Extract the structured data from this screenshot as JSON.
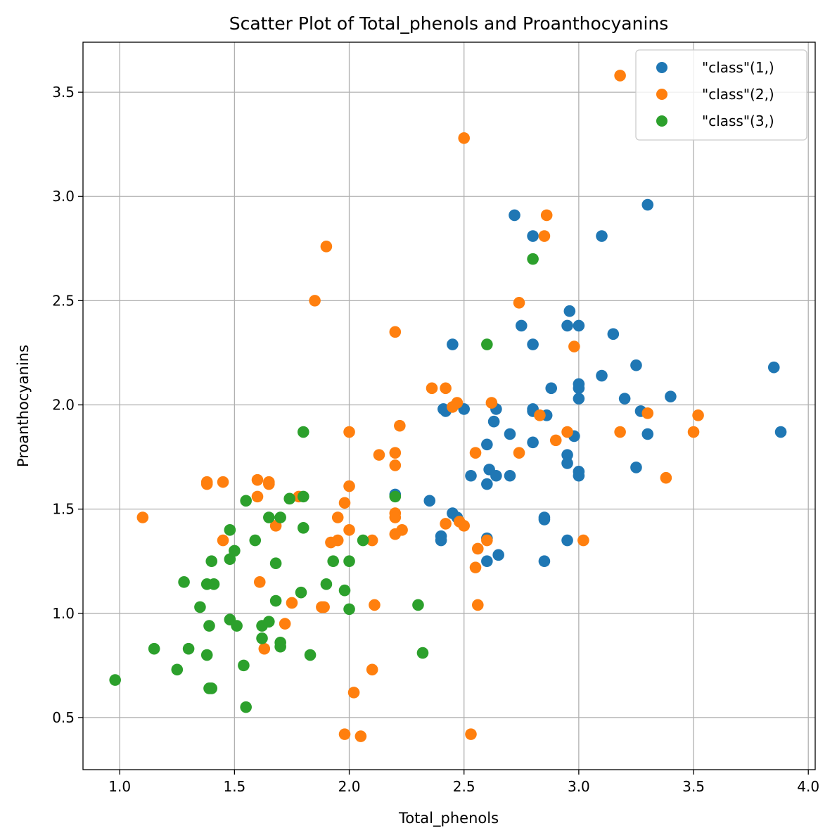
{
  "chart_data": {
    "type": "scatter",
    "title": "Scatter Plot of Total_phenols and Proanthocyanins",
    "xlabel": "Total_phenols",
    "ylabel": "Proanthocyanins",
    "xlim": [
      0.84,
      4.03
    ],
    "ylim": [
      0.25,
      3.74
    ],
    "xticks": [
      1.0,
      1.5,
      2.0,
      2.5,
      3.0,
      3.5,
      4.0
    ],
    "xtick_labels": [
      "1.0",
      "1.5",
      "2.0",
      "2.5",
      "3.0",
      "3.5",
      "4.0"
    ],
    "yticks": [
      0.5,
      1.0,
      1.5,
      2.0,
      2.5,
      3.0,
      3.5
    ],
    "ytick_labels": [
      "0.5",
      "1.0",
      "1.5",
      "2.0",
      "2.5",
      "3.0",
      "3.5"
    ],
    "grid": true,
    "legend_position": "top-right",
    "series": [
      {
        "name": "\"class\"(1,)",
        "color": "#1f77b4",
        "points": [
          [
            2.72,
            2.91
          ],
          [
            2.8,
            2.81
          ],
          [
            3.3,
            2.96
          ],
          [
            3.1,
            2.81
          ],
          [
            2.96,
            2.45
          ],
          [
            2.95,
            2.38
          ],
          [
            3.0,
            2.38
          ],
          [
            2.75,
            2.38
          ],
          [
            3.15,
            2.34
          ],
          [
            2.45,
            2.29
          ],
          [
            2.8,
            2.29
          ],
          [
            3.85,
            2.18
          ],
          [
            3.25,
            2.19
          ],
          [
            3.1,
            2.14
          ],
          [
            2.88,
            2.08
          ],
          [
            3.0,
            2.1
          ],
          [
            3.0,
            2.08
          ],
          [
            3.0,
            2.03
          ],
          [
            3.4,
            2.04
          ],
          [
            3.2,
            2.03
          ],
          [
            2.64,
            1.98
          ],
          [
            2.41,
            1.98
          ],
          [
            2.42,
            1.97
          ],
          [
            2.5,
            1.98
          ],
          [
            2.8,
            1.98
          ],
          [
            2.8,
            1.97
          ],
          [
            2.86,
            1.95
          ],
          [
            3.27,
            1.97
          ],
          [
            3.88,
            1.87
          ],
          [
            2.63,
            1.92
          ],
          [
            2.7,
            1.86
          ],
          [
            2.98,
            1.85
          ],
          [
            3.3,
            1.86
          ],
          [
            2.6,
            1.81
          ],
          [
            2.8,
            1.82
          ],
          [
            2.95,
            1.76
          ],
          [
            2.95,
            1.72
          ],
          [
            3.25,
            1.7
          ],
          [
            2.61,
            1.69
          ],
          [
            3.0,
            1.68
          ],
          [
            3.0,
            1.66
          ],
          [
            2.53,
            1.66
          ],
          [
            2.64,
            1.66
          ],
          [
            2.7,
            1.66
          ],
          [
            2.6,
            1.62
          ],
          [
            2.2,
            1.57
          ],
          [
            2.35,
            1.54
          ],
          [
            2.45,
            1.48
          ],
          [
            2.47,
            1.46
          ],
          [
            2.85,
            1.46
          ],
          [
            2.85,
            1.45
          ],
          [
            2.4,
            1.37
          ],
          [
            2.4,
            1.35
          ],
          [
            2.6,
            1.36
          ],
          [
            2.95,
            1.35
          ],
          [
            2.65,
            1.28
          ],
          [
            2.6,
            1.25
          ],
          [
            2.85,
            1.25
          ]
        ]
      },
      {
        "name": "\"class\"(2,)",
        "color": "#ff7f0e",
        "points": [
          [
            3.18,
            3.58
          ],
          [
            2.5,
            3.28
          ],
          [
            2.86,
            2.91
          ],
          [
            2.85,
            2.81
          ],
          [
            1.9,
            2.76
          ],
          [
            1.85,
            2.5
          ],
          [
            2.74,
            2.49
          ],
          [
            2.2,
            2.35
          ],
          [
            2.98,
            2.28
          ],
          [
            2.36,
            2.08
          ],
          [
            2.42,
            2.08
          ],
          [
            2.47,
            2.01
          ],
          [
            2.62,
            2.01
          ],
          [
            2.45,
            1.99
          ],
          [
            3.52,
            1.95
          ],
          [
            2.83,
            1.95
          ],
          [
            3.3,
            1.96
          ],
          [
            2.22,
            1.9
          ],
          [
            2.0,
            1.87
          ],
          [
            2.95,
            1.87
          ],
          [
            3.18,
            1.87
          ],
          [
            3.5,
            1.87
          ],
          [
            2.9,
            1.83
          ],
          [
            2.55,
            1.77
          ],
          [
            2.2,
            1.77
          ],
          [
            2.74,
            1.77
          ],
          [
            2.13,
            1.76
          ],
          [
            2.2,
            1.71
          ],
          [
            3.38,
            1.65
          ],
          [
            1.45,
            1.63
          ],
          [
            1.38,
            1.63
          ],
          [
            1.65,
            1.63
          ],
          [
            1.6,
            1.64
          ],
          [
            1.38,
            1.62
          ],
          [
            1.65,
            1.62
          ],
          [
            2.0,
            1.61
          ],
          [
            1.6,
            1.56
          ],
          [
            1.78,
            1.56
          ],
          [
            1.98,
            1.53
          ],
          [
            2.2,
            1.48
          ],
          [
            2.2,
            1.46
          ],
          [
            1.1,
            1.46
          ],
          [
            1.95,
            1.46
          ],
          [
            2.48,
            1.44
          ],
          [
            2.42,
            1.43
          ],
          [
            2.5,
            1.42
          ],
          [
            1.68,
            1.42
          ],
          [
            2.0,
            1.4
          ],
          [
            2.23,
            1.4
          ],
          [
            2.2,
            1.38
          ],
          [
            1.45,
            1.35
          ],
          [
            1.95,
            1.35
          ],
          [
            1.92,
            1.34
          ],
          [
            2.1,
            1.35
          ],
          [
            2.6,
            1.35
          ],
          [
            3.02,
            1.35
          ],
          [
            2.56,
            1.31
          ],
          [
            2.55,
            1.22
          ],
          [
            1.61,
            1.15
          ],
          [
            1.75,
            1.05
          ],
          [
            2.11,
            1.04
          ],
          [
            2.56,
            1.04
          ],
          [
            1.88,
            1.03
          ],
          [
            1.89,
            1.03
          ],
          [
            1.72,
            0.95
          ],
          [
            1.63,
            0.83
          ],
          [
            2.1,
            0.73
          ],
          [
            2.02,
            0.62
          ],
          [
            1.98,
            0.42
          ],
          [
            2.05,
            0.41
          ],
          [
            2.53,
            0.42
          ]
        ]
      },
      {
        "name": "\"class\"(3,)",
        "color": "#2ca02c",
        "points": [
          [
            2.8,
            2.7
          ],
          [
            2.6,
            2.29
          ],
          [
            1.8,
            1.87
          ],
          [
            2.2,
            1.56
          ],
          [
            1.8,
            1.56
          ],
          [
            1.74,
            1.55
          ],
          [
            1.55,
            1.54
          ],
          [
            1.65,
            1.46
          ],
          [
            1.7,
            1.46
          ],
          [
            1.8,
            1.41
          ],
          [
            1.48,
            1.4
          ],
          [
            1.59,
            1.35
          ],
          [
            2.06,
            1.35
          ],
          [
            1.5,
            1.3
          ],
          [
            1.48,
            1.26
          ],
          [
            1.4,
            1.25
          ],
          [
            1.93,
            1.25
          ],
          [
            2.0,
            1.25
          ],
          [
            1.68,
            1.24
          ],
          [
            1.28,
            1.15
          ],
          [
            1.38,
            1.14
          ],
          [
            1.41,
            1.14
          ],
          [
            1.9,
            1.14
          ],
          [
            1.98,
            1.11
          ],
          [
            1.79,
            1.1
          ],
          [
            1.68,
            1.06
          ],
          [
            2.3,
            1.04
          ],
          [
            1.35,
            1.03
          ],
          [
            2.0,
            1.02
          ],
          [
            1.48,
            0.97
          ],
          [
            1.65,
            0.96
          ],
          [
            1.51,
            0.94
          ],
          [
            1.39,
            0.94
          ],
          [
            1.62,
            0.94
          ],
          [
            1.62,
            0.88
          ],
          [
            1.7,
            0.86
          ],
          [
            1.7,
            0.84
          ],
          [
            1.15,
            0.83
          ],
          [
            1.3,
            0.83
          ],
          [
            2.32,
            0.81
          ],
          [
            1.38,
            0.8
          ],
          [
            1.83,
            0.8
          ],
          [
            1.54,
            0.75
          ],
          [
            1.25,
            0.73
          ],
          [
            0.98,
            0.68
          ],
          [
            1.39,
            0.64
          ],
          [
            1.4,
            0.64
          ],
          [
            1.55,
            0.55
          ]
        ]
      }
    ]
  }
}
